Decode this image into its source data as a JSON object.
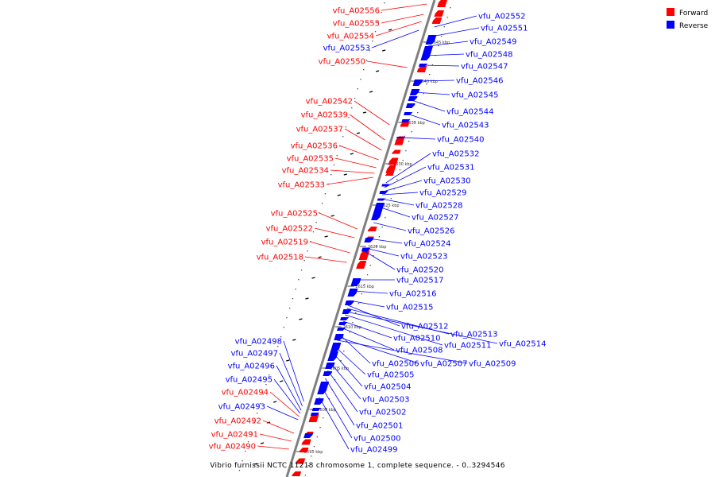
{
  "caption": "Vibrio furnissii NCTC 11218 chromosome 1, complete sequence. - 0..3294546",
  "colors": {
    "forward": "#ff0000",
    "reverse": "#0000ff",
    "backbone": "#808080",
    "tick": "#000000",
    "background": "#ffffff"
  },
  "legend": {
    "forward_label": "Forward",
    "reverse_label": "Reverse"
  },
  "ticks": [
    "2645 kbp",
    "2640 kbp",
    "2635 kbp",
    "2630 kbp",
    "2625 kbp",
    "2620 kbp",
    "2615 kbp",
    "2610 kbp",
    "2605 kbp",
    "2600 kbp",
    "2595 kbp"
  ],
  "forward_genes": [
    "vfu_A02556",
    "vfu_A02555",
    "vfu_A02554",
    "vfu_A02550",
    "vfu_A02542",
    "vfu_A02539",
    "vfu_A02537",
    "vfu_A02536",
    "vfu_A02535",
    "vfu_A02534",
    "vfu_A02533",
    "vfu_A02525",
    "vfu_A02522",
    "vfu_A02519",
    "vfu_A02518",
    "vfu_A02494",
    "vfu_A02492",
    "vfu_A02491",
    "vfu_A02490"
  ],
  "reverse_genes_left": [
    "vfu_A02553",
    "vfu_A02498",
    "vfu_A02497",
    "vfu_A02496",
    "vfu_A02495",
    "vfu_A02493"
  ],
  "reverse_genes_right": [
    "vfu_A02552",
    "vfu_A02551",
    "vfu_A02549",
    "vfu_A02548",
    "vfu_A02547",
    "vfu_A02546",
    "vfu_A02545",
    "vfu_A02544",
    "vfu_A02543",
    "vfu_A02540",
    "vfu_A02532",
    "vfu_A02531",
    "vfu_A02530",
    "vfu_A02529",
    "vfu_A02528",
    "vfu_A02527",
    "vfu_A02526",
    "vfu_A02524",
    "vfu_A02523",
    "vfu_A02520",
    "vfu_A02517",
    "vfu_A02516",
    "vfu_A02515",
    "vfu_A02512",
    "vfu_A02513",
    "vfu_A02514",
    "vfu_A02511",
    "vfu_A02510",
    "vfu_A02508",
    "vfu_A02506",
    "vfu_A02507",
    "vfu_A02509",
    "vfu_A02505",
    "vfu_A02504",
    "vfu_A02503",
    "vfu_A02502",
    "vfu_A02501",
    "vfu_A02500",
    "vfu_A02499"
  ]
}
